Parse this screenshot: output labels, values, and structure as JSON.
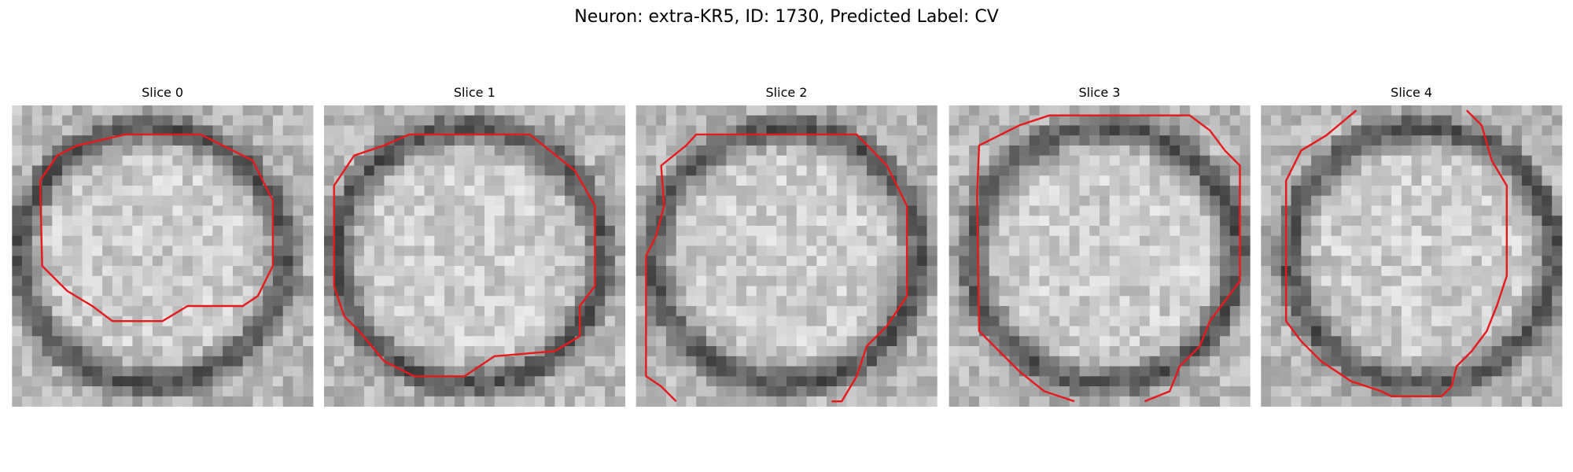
{
  "header": {
    "title": "Neuron: extra-KR5, ID: 1730, Predicted Label: CV"
  },
  "panels": [
    {
      "title": "Slice 0"
    },
    {
      "title": "Slice 1"
    },
    {
      "title": "Slice 2"
    },
    {
      "title": "Slice 3"
    },
    {
      "title": "Slice 4"
    }
  ]
}
